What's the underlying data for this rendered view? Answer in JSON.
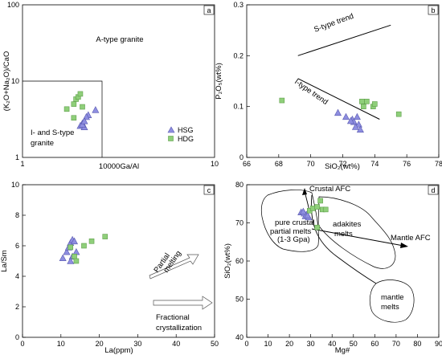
{
  "chart_data": [
    {
      "type": "scatter",
      "panel": "a",
      "xlabel": "10000Ga/Al",
      "ylabel": "(K₂O+Na₂O)/CaO",
      "xscale": "log",
      "yscale": "log",
      "xlim": [
        1,
        10
      ],
      "ylim": [
        1,
        100
      ],
      "xticks": [
        "1",
        "10"
      ],
      "yticks": [
        "1",
        "10",
        "100"
      ],
      "colors": {
        "HSG": "#8e8ee0",
        "HDG": "#8fcf7a"
      },
      "annotations": [
        "A-type granite",
        "I- and S-type",
        "granite"
      ],
      "legend": {
        "placement": "lower-right",
        "entries": [
          "HSG",
          "HDG"
        ]
      },
      "series": [
        {
          "name": "HSG",
          "marker": "triangle",
          "points": [
            [
              2.4,
              4.2
            ],
            [
              2.2,
              3.6
            ],
            [
              2.15,
              3.4
            ],
            [
              2.05,
              2.8
            ],
            [
              2.0,
              2.6
            ],
            [
              2.1,
              2.5
            ],
            [
              2.05,
              2.7
            ],
            [
              2.1,
              3.0
            ]
          ]
        },
        {
          "name": "HDG",
          "marker": "square",
          "points": [
            [
              1.7,
              4.3
            ],
            [
              1.85,
              5.0
            ],
            [
              1.9,
              5.8
            ],
            [
              1.95,
              6.2
            ],
            [
              2.0,
              6.8
            ],
            [
              1.85,
              3.3
            ],
            [
              2.05,
              4.6
            ]
          ]
        }
      ]
    },
    {
      "type": "scatter",
      "panel": "b",
      "xlabel": "SiO₂(wt%)",
      "ylabel": "P₂O₅(wt%)",
      "xlim": [
        66,
        78
      ],
      "ylim": [
        0,
        0.3
      ],
      "xticks": [
        "66",
        "68",
        "70",
        "72",
        "74",
        "76",
        "78"
      ],
      "yticks": [
        "0",
        "0.1",
        "0.2",
        "0.3"
      ],
      "annotations": [
        "S-type trend",
        "I-type trend"
      ],
      "trend_lines": [
        {
          "name": "S-type trend",
          "from": [
            69.2,
            0.2
          ],
          "to": [
            75.0,
            0.26
          ]
        },
        {
          "name": "I-type trend",
          "from": [
            69.2,
            0.155
          ],
          "to": [
            74.3,
            0.075
          ]
        }
      ],
      "series": [
        {
          "name": "HSG",
          "marker": "triangle",
          "points": [
            [
              71.7,
              0.088
            ],
            [
              72.2,
              0.08
            ],
            [
              72.6,
              0.075
            ],
            [
              72.9,
              0.08
            ],
            [
              72.7,
              0.07
            ],
            [
              73.0,
              0.065
            ],
            [
              72.5,
              0.072
            ],
            [
              72.8,
              0.06
            ],
            [
              73.1,
              0.055
            ]
          ]
        },
        {
          "name": "HDG",
          "marker": "square",
          "points": [
            [
              68.2,
              0.112
            ],
            [
              73.3,
              0.1
            ],
            [
              73.5,
              0.11
            ],
            [
              73.9,
              0.1
            ],
            [
              74.0,
              0.105
            ],
            [
              73.2,
              0.11
            ],
            [
              75.5,
              0.085
            ]
          ]
        }
      ]
    },
    {
      "type": "scatter",
      "panel": "c",
      "xlabel": "La(ppm)",
      "ylabel": "La/Sm",
      "xlim": [
        0,
        50
      ],
      "ylim": [
        0,
        10
      ],
      "xticks": [
        "0",
        "10",
        "20",
        "30",
        "40",
        "50"
      ],
      "yticks": [
        "0",
        "2",
        "4",
        "6",
        "8",
        "10"
      ],
      "annotations": [
        "Partial",
        "melting",
        "Fractional",
        "crystallization"
      ],
      "series": [
        {
          "name": "HSG",
          "marker": "triangle",
          "points": [
            [
              10.5,
              5.2
            ],
            [
              11.5,
              5.6
            ],
            [
              12.0,
              5.9
            ],
            [
              12.5,
              6.2
            ],
            [
              13.0,
              6.4
            ],
            [
              13.5,
              6.3
            ],
            [
              13.0,
              5.3
            ],
            [
              14.0,
              5.6
            ],
            [
              12.5,
              5.0
            ]
          ]
        },
        {
          "name": "HDG",
          "marker": "square",
          "points": [
            [
              12.5,
              5.9
            ],
            [
              13.5,
              5.3
            ],
            [
              14.0,
              5.0
            ],
            [
              16.0,
              6.0
            ],
            [
              18.0,
              6.3
            ],
            [
              21.5,
              6.6
            ]
          ]
        }
      ]
    },
    {
      "type": "scatter",
      "panel": "d",
      "xlabel": "Mg#",
      "ylabel": "SiO₂(wt%)",
      "xlim": [
        0,
        90
      ],
      "ylim": [
        40,
        80
      ],
      "xticks": [
        "0",
        "10",
        "20",
        "30",
        "40",
        "50",
        "60",
        "70",
        "80",
        "90"
      ],
      "yticks": [
        "40",
        "50",
        "60",
        "70",
        "80"
      ],
      "annotations": [
        "Crustal AFC",
        "pure crustal",
        "partial melts",
        "(1-3 Gpa)",
        "adakites",
        "melts",
        "Mantle AFC",
        "mantle",
        "melts"
      ],
      "series": [
        {
          "name": "HSG",
          "marker": "triangle",
          "points": [
            [
              25.5,
              72.8
            ],
            [
              27.0,
              72.5
            ],
            [
              28.0,
              72.2
            ],
            [
              27.5,
              71.8
            ],
            [
              29.0,
              71.5
            ],
            [
              26.5,
              73.0
            ],
            [
              28.5,
              72.0
            ]
          ]
        },
        {
          "name": "HDG",
          "marker": "square",
          "points": [
            [
              29.5,
              73.2
            ],
            [
              31.0,
              73.8
            ],
            [
              33.0,
              74.2
            ],
            [
              34.5,
              75.8
            ],
            [
              35.5,
              73.5
            ],
            [
              37.0,
              73.5
            ],
            [
              33.0,
              68.8
            ]
          ]
        }
      ]
    }
  ],
  "panel_labels": [
    "a",
    "b",
    "c",
    "d"
  ]
}
